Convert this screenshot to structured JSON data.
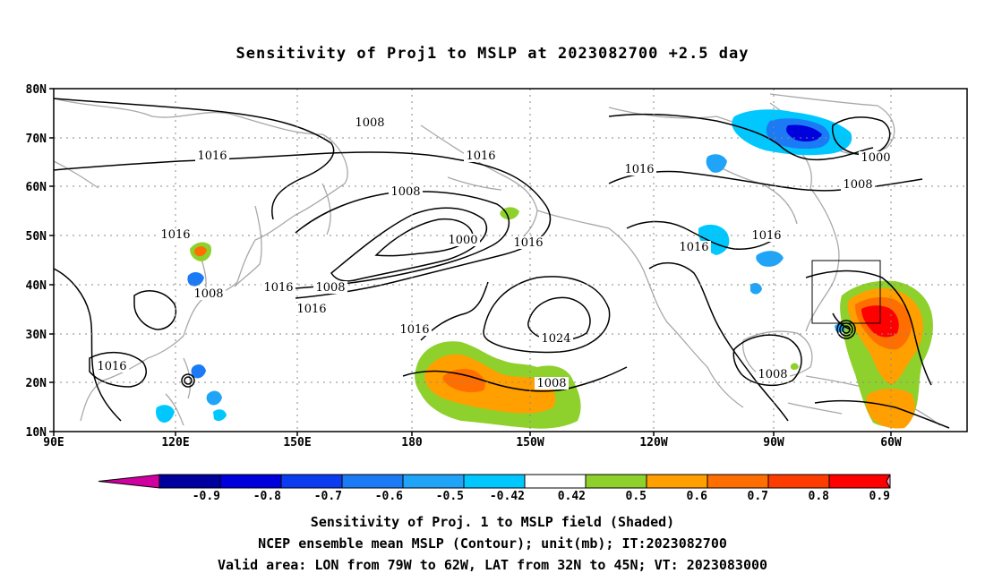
{
  "title": "Sensitivity of Proj1 to MSLP at 2023082700 +2.5 day",
  "map": {
    "lat_labels": [
      "80N",
      "70N",
      "60N",
      "50N",
      "40N",
      "30N",
      "20N",
      "10N"
    ],
    "lon_labels": [
      "90E",
      "120E",
      "150E",
      "180",
      "150W",
      "120W",
      "90W",
      "60W"
    ],
    "contour_labels": [
      "1008",
      "1016",
      "1016",
      "1016",
      "1000",
      "1008",
      "1008",
      "1000",
      "1016",
      "1016",
      "1016",
      "1016",
      "1008",
      "1016",
      "1008",
      "1016",
      "1024",
      "1016",
      "1008",
      "1008",
      "1016"
    ],
    "valid_box": "Valid area: LON from 79W to 62W, LAT from 32N to 45N"
  },
  "colorbar": {
    "labels": [
      "-0.9",
      "-0.8",
      "-0.7",
      "-0.6",
      "-0.5",
      "-0.42",
      "0.42",
      "0.5",
      "0.6",
      "0.7",
      "0.8",
      "0.9"
    ],
    "colors": {
      "below": "#d000a0",
      "bins": [
        "#00009e",
        "#0000dd",
        "#0c3cf0",
        "#1c7af5",
        "#1fa4f8",
        "#00c8ff",
        "#ffffff",
        "#8fd12c",
        "#ff9f00",
        "#ff6e00",
        "#ff3c00",
        "#ff0000"
      ],
      "above": "#ff9fcb"
    }
  },
  "captions": [
    "Sensitivity of Proj. 1 to MSLP field (Shaded)",
    "NCEP ensemble mean MSLP (Contour); unit(mb); IT:2023082700",
    "Valid area: LON from 79W to 62W, LAT from 32N to 45N; VT: 2023083000"
  ]
}
